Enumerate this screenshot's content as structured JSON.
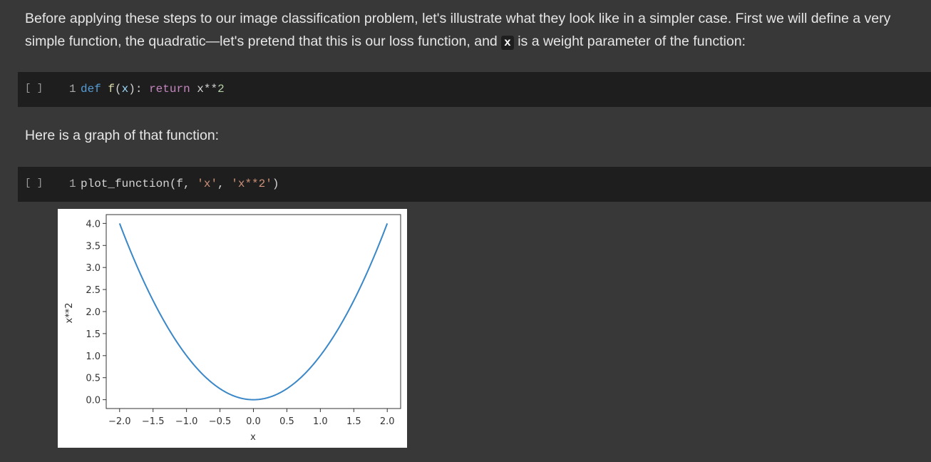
{
  "markdown_1": {
    "before": "Before applying these steps to our image classification problem, let's illustrate what they look like in a simpler case. First we will define a very simple function, the quadratic—let's pretend that this is our loss function, and ",
    "code": "x",
    "after": " is a weight parameter of the function:"
  },
  "cell_1": {
    "run_button": "[ ]",
    "line_number": "1",
    "tokens": {
      "def": "def",
      "name": "f",
      "open": "(",
      "arg": "x",
      "close": "): ",
      "ret": "return",
      "expr": " x**",
      "num": "2"
    }
  },
  "markdown_2": {
    "text": "Here is a graph of that function:"
  },
  "cell_2": {
    "run_button": "[ ]",
    "line_number": "1",
    "tokens": {
      "call": "plot_function(f, ",
      "s1": "'x'",
      "comma": ", ",
      "s2": "'x**2'",
      "end": ")"
    }
  },
  "chart_data": {
    "type": "line",
    "function": "x**2",
    "x": [
      -2.0,
      -1.75,
      -1.5,
      -1.25,
      -1.0,
      -0.75,
      -0.5,
      -0.25,
      0.0,
      0.25,
      0.5,
      0.75,
      1.0,
      1.25,
      1.5,
      1.75,
      2.0
    ],
    "y": [
      4.0,
      3.0625,
      2.25,
      1.5625,
      1.0,
      0.5625,
      0.25,
      0.0625,
      0.0,
      0.0625,
      0.25,
      0.5625,
      1.0,
      1.5625,
      2.25,
      3.0625,
      4.0
    ],
    "xticks": [
      "−2.0",
      "−1.5",
      "−1.0",
      "−0.5",
      "0.0",
      "0.5",
      "1.0",
      "1.5",
      "2.0"
    ],
    "yticks": [
      "0.0",
      "0.5",
      "1.0",
      "1.5",
      "2.0",
      "2.5",
      "3.0",
      "3.5",
      "4.0"
    ],
    "xlabel": "x",
    "ylabel": "x**2",
    "title": "",
    "xlim": [
      -2.2,
      2.2
    ],
    "ylim": [
      -0.2,
      4.2
    ],
    "line_color": "#3a87c8",
    "grid": false
  }
}
